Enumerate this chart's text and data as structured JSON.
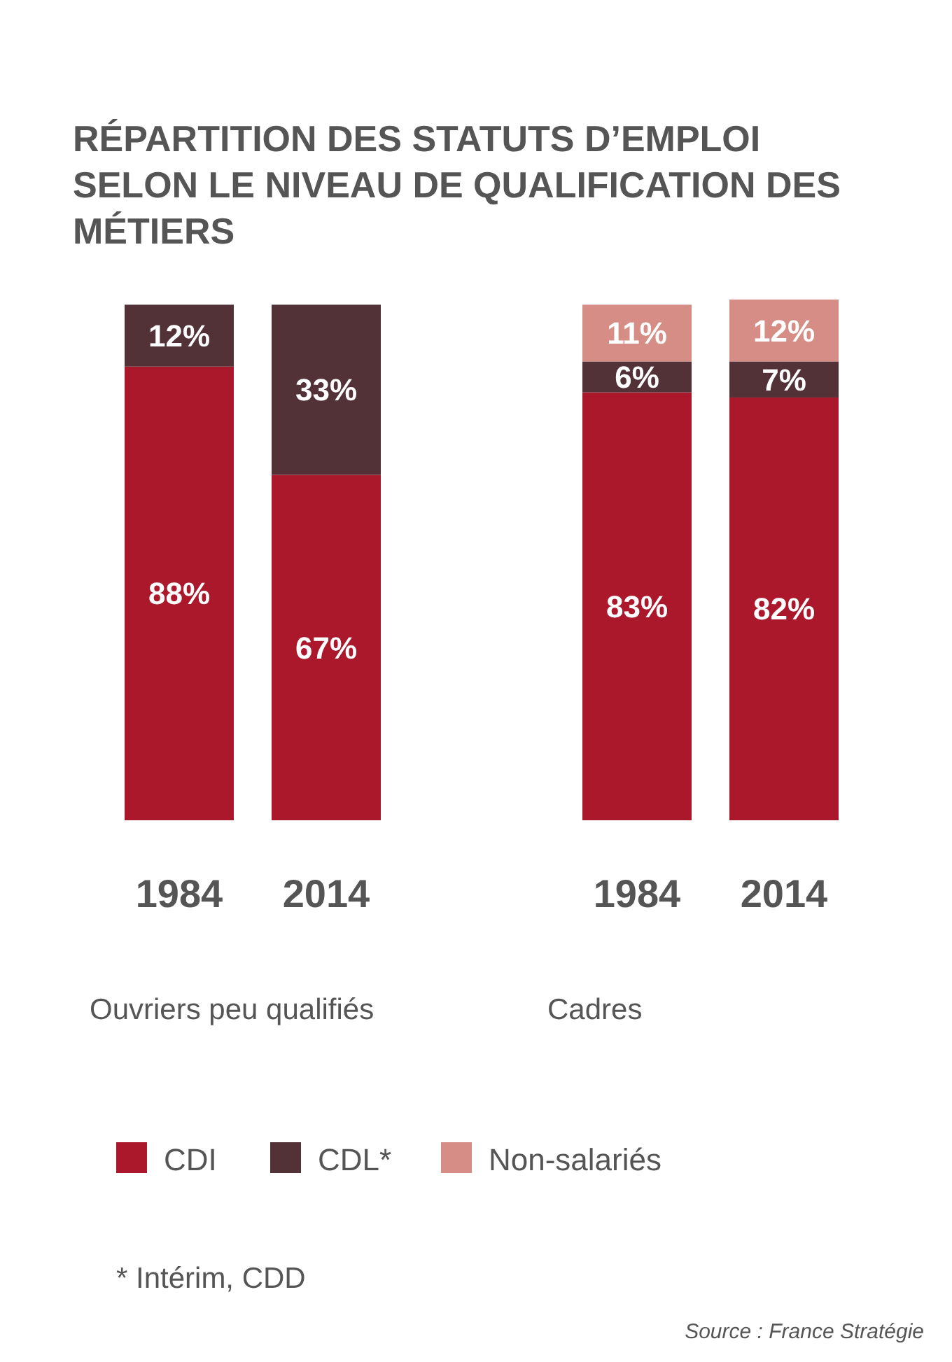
{
  "chart_data": {
    "type": "bar",
    "title": "RÉPARTITION DES STATUTS D’EMPLOI SELON LE NIVEAU DE QUALIFICATION DES MÉTIERS",
    "categories": [
      "1984",
      "2014",
      "1984",
      "2014"
    ],
    "stacked": true,
    "legend": "bottom",
    "series": [
      {
        "name": "CDI",
        "color": "#ab182c",
        "values": [
          88,
          67,
          83,
          82
        ],
        "value_labels": [
          "88%",
          "67%",
          "83%",
          "82%"
        ]
      },
      {
        "name": "CDL*",
        "color": "#523237",
        "values": [
          12,
          33,
          6,
          7
        ],
        "value_labels": [
          "12%",
          "33%",
          "6%",
          "7%"
        ]
      },
      {
        "name": "Non-salariés",
        "color": "#d58d85",
        "values": [
          null,
          null,
          11,
          12
        ],
        "value_labels": [
          null,
          null,
          "11%",
          "12%"
        ]
      }
    ],
    "annotations": [
      "Ouvriers peu qualifiés",
      "Cadres",
      "* Intérim, CDD",
      "Source : France Stratégie"
    ]
  }
}
